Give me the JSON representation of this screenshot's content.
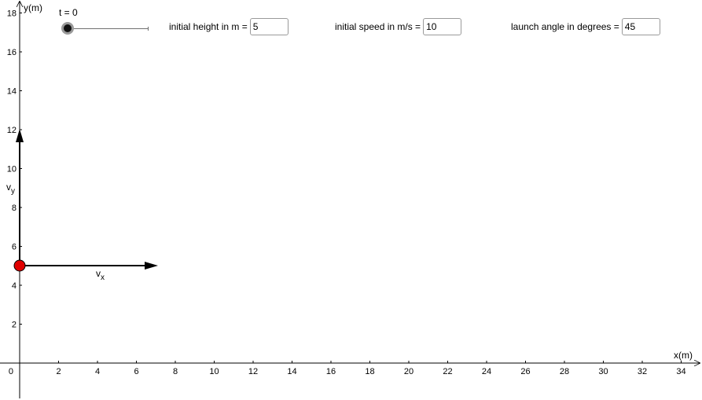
{
  "slider": {
    "caption": "t = 0",
    "value": 0
  },
  "inputs": {
    "height": {
      "label": "initial height in m =",
      "value": "5"
    },
    "speed": {
      "label": "initial speed in m/s =",
      "value": "10"
    },
    "angle": {
      "label": "launch angle in degrees =",
      "value": "45"
    }
  },
  "axes": {
    "x_label": "x(m)",
    "y_label": "y(m)",
    "x_ticks": [
      0,
      2,
      4,
      6,
      8,
      10,
      12,
      14,
      16,
      18,
      20,
      22,
      24,
      26,
      28,
      30,
      32,
      34
    ],
    "y_ticks": [
      2,
      4,
      6,
      8,
      10,
      12,
      14,
      16,
      18
    ]
  },
  "vectors": {
    "vx_label": "v",
    "vx_sub": "x",
    "vy_label": "v",
    "vy_sub": "y"
  },
  "colors": {
    "ball": "#e00000",
    "vector": "#000000",
    "axis": "#000000"
  }
}
